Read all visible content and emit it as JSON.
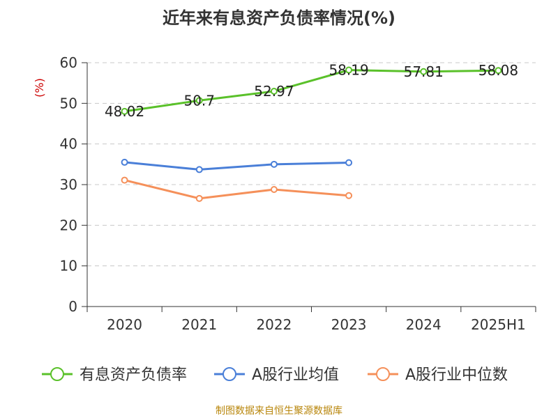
{
  "chart_data": {
    "type": "line",
    "title": "近年来有息资产负债率情况(%)",
    "ylabel": "(%)",
    "ylim": [
      0,
      60
    ],
    "yticks": [
      0,
      10,
      20,
      30,
      40,
      50,
      60
    ],
    "grid": true,
    "legend_position": "bottom",
    "categories": [
      "2020",
      "2021",
      "2022",
      "2023",
      "2024",
      "2025H1"
    ],
    "series": [
      {
        "name": "有息资产负债率",
        "color": "#5ac12a",
        "values": [
          48.02,
          50.7,
          52.97,
          58.19,
          57.81,
          58.08
        ],
        "data_labels": [
          "48.02",
          "50.7",
          "52.97",
          "58.19",
          "57.81",
          "58.08"
        ]
      },
      {
        "name": "A股行业均值",
        "color": "#4a7fd8",
        "values": [
          35.5,
          33.7,
          35.0,
          35.4,
          null,
          null
        ]
      },
      {
        "name": "A股行业中位数",
        "color": "#f5905a",
        "values": [
          31.1,
          26.6,
          28.8,
          27.3,
          null,
          null
        ]
      }
    ]
  },
  "source_note": "制图数据来自恒生聚源数据库"
}
